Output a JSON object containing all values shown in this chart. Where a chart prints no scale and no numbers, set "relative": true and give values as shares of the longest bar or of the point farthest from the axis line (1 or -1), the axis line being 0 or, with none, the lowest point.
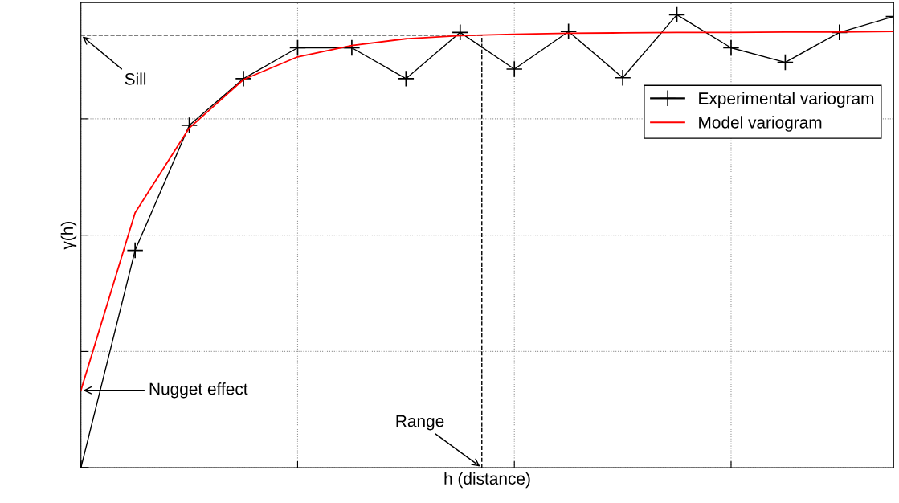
{
  "chart_data": {
    "type": "line",
    "relative": true,
    "xlabel": "h (distance)",
    "ylabel": "γ(h)",
    "categories": [
      null,
      null,
      null,
      null,
      null,
      null,
      null,
      null,
      null,
      null,
      null,
      null,
      null,
      null,
      null,
      null
    ],
    "series": [
      {
        "name": "Experimental variogram",
        "color": "#000000",
        "marker": "cross",
        "values": [
          0,
          0.48,
          0.756,
          0.859,
          0.927,
          0.927,
          0.859,
          0.961,
          0.88,
          0.963,
          0.861,
          1.0,
          0.927,
          0.895,
          0.961,
          0.996
        ]
      },
      {
        "name": "Model variogram",
        "color": "#ff0000",
        "marker": "none",
        "values": [
          0.171,
          0.563,
          0.75,
          0.857,
          0.907,
          0.932,
          0.947,
          0.954,
          0.957,
          0.959,
          0.96,
          0.961,
          0.961,
          0.962,
          0.962,
          0.963
        ]
      }
    ],
    "ref_lines": [
      {
        "axis": "y",
        "value": 0.955,
        "label": "Sill",
        "color": "#000000",
        "line_style": "dashed"
      }
    ],
    "annotations": [
      "Nugget effect",
      "Range"
    ],
    "grid": true,
    "legend": "top right",
    "tick_labels": false,
    "line_style": "solid"
  }
}
